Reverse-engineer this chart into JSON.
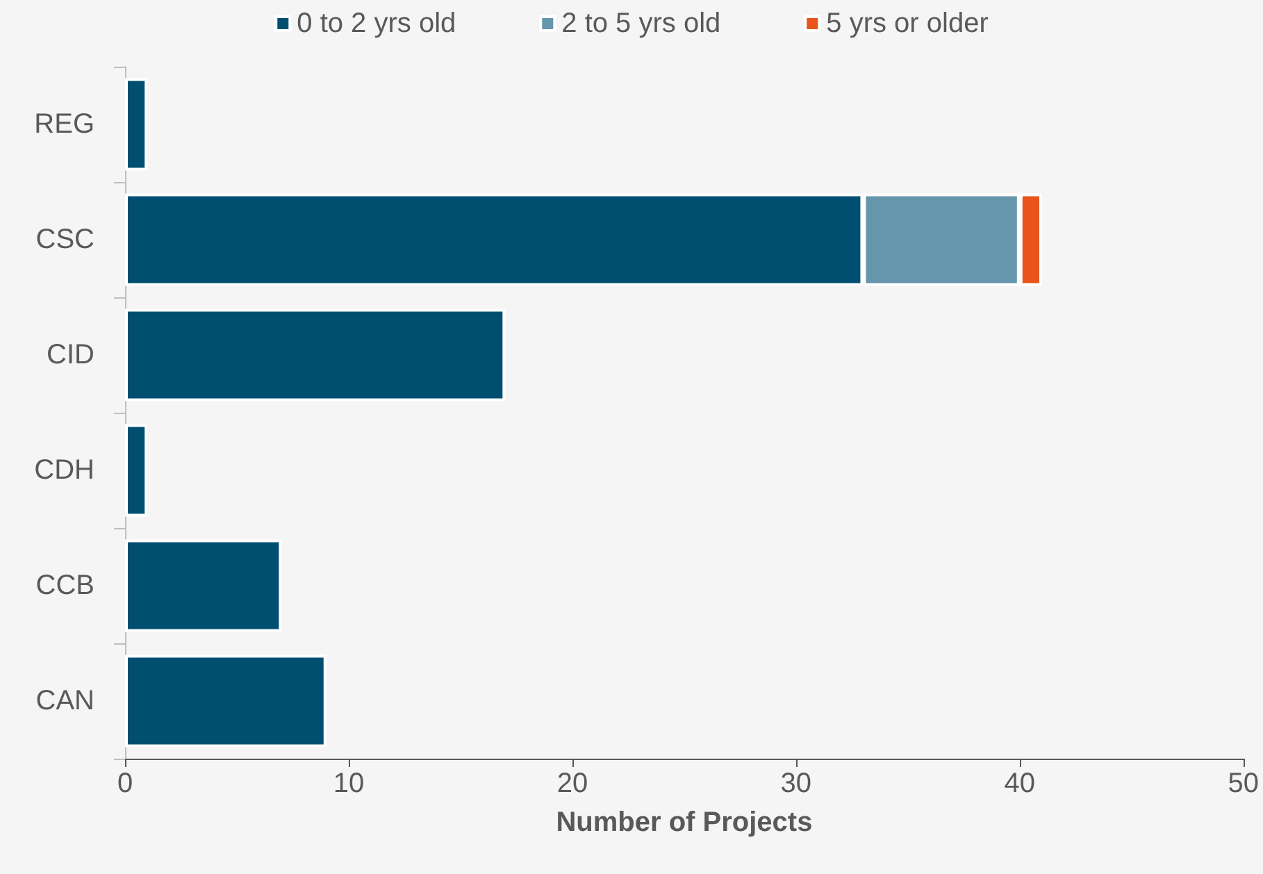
{
  "chart_data": {
    "type": "bar",
    "orientation": "horizontal",
    "stacked": true,
    "xlabel": "Number of Projects",
    "categories": [
      "REG",
      "CSC",
      "CID",
      "CDH",
      "CCB",
      "CAN"
    ],
    "series": [
      {
        "name": "0 to 2 yrs old",
        "color": "#004f71",
        "values": [
          1,
          33,
          17,
          1,
          7,
          9
        ]
      },
      {
        "name": "2 to 5 yrs old",
        "color": "#6596ab",
        "values": [
          0,
          7,
          0,
          0,
          0,
          0
        ]
      },
      {
        "name": "5 yrs or older",
        "color": "#e8541a",
        "values": [
          0,
          1,
          0,
          0,
          0,
          0
        ]
      }
    ],
    "xlim": [
      0,
      50
    ],
    "xticks": [
      0,
      10,
      20,
      30,
      40,
      50
    ],
    "grid": false,
    "legend": "top"
  }
}
